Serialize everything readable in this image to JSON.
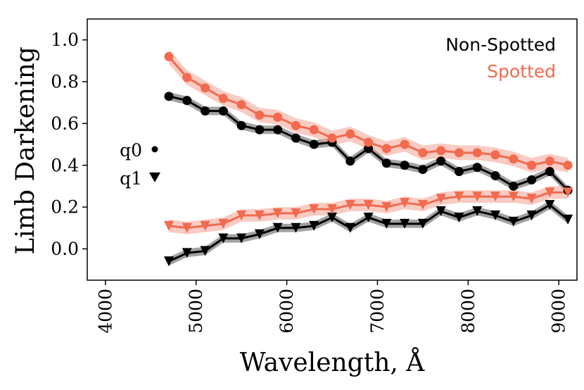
{
  "chart_data": {
    "type": "line",
    "xlabel": "Wavelength, Å",
    "ylabel": "Limb Darkening",
    "xlim": [
      3800,
      9200
    ],
    "ylim": [
      -0.15,
      1.1
    ],
    "x_ticks": [
      4000,
      5000,
      6000,
      7000,
      8000,
      9000
    ],
    "y_ticks": [
      0.0,
      0.2,
      0.4,
      0.6,
      0.8,
      1.0
    ],
    "x_tick_labels": [
      "4000",
      "5000",
      "6000",
      "7000",
      "8000",
      "9000"
    ],
    "y_tick_labels": [
      "0.0",
      "0.2",
      "0.4",
      "0.6",
      "0.8",
      "1.0"
    ],
    "legend": {
      "placement": "top-right",
      "entries": [
        {
          "label": "Non-Spotted",
          "color": "#000000"
        },
        {
          "label": "Spotted",
          "color": "#f26a4f"
        }
      ]
    },
    "marker_key": [
      {
        "label": "q0",
        "marker": "•"
      },
      {
        "label": "q1",
        "marker": "▼"
      }
    ],
    "x": [
      4700,
      4900,
      5100,
      5300,
      5500,
      5700,
      5900,
      6100,
      6300,
      6500,
      6700,
      6900,
      7100,
      7300,
      7500,
      7700,
      7900,
      8100,
      8300,
      8500,
      8700,
      8900,
      9100
    ],
    "series": [
      {
        "name": "Non-Spotted q0",
        "group": "Non-Spotted",
        "param": "q0",
        "marker": "circle",
        "color": "#000000",
        "band_color": "#555555",
        "error": 0.02,
        "values": [
          0.73,
          0.71,
          0.66,
          0.66,
          0.59,
          0.57,
          0.57,
          0.53,
          0.5,
          0.51,
          0.42,
          0.48,
          0.41,
          0.4,
          0.38,
          0.42,
          0.37,
          0.39,
          0.35,
          0.3,
          0.33,
          0.37,
          0.28
        ]
      },
      {
        "name": "Spotted q0",
        "group": "Spotted",
        "param": "q0",
        "marker": "circle",
        "color": "#f26a4f",
        "band_color": "#f4a090",
        "error": 0.035,
        "values": [
          0.92,
          0.82,
          0.77,
          0.72,
          0.69,
          0.64,
          0.63,
          0.59,
          0.57,
          0.53,
          0.55,
          0.51,
          0.48,
          0.5,
          0.46,
          0.47,
          0.46,
          0.46,
          0.45,
          0.43,
          0.4,
          0.42,
          0.4
        ]
      },
      {
        "name": "Non-Spotted q1",
        "group": "Non-Spotted",
        "param": "q1",
        "marker": "triangle",
        "color": "#000000",
        "band_color": "#555555",
        "error": 0.02,
        "values": [
          -0.06,
          -0.02,
          -0.01,
          0.05,
          0.05,
          0.07,
          0.1,
          0.1,
          0.11,
          0.15,
          0.1,
          0.15,
          0.12,
          0.12,
          0.12,
          0.18,
          0.15,
          0.18,
          0.16,
          0.13,
          0.16,
          0.21,
          0.14
        ]
      },
      {
        "name": "Spotted q1",
        "group": "Spotted",
        "param": "q1",
        "marker": "triangle",
        "color": "#f26a4f",
        "band_color": "#f4a090",
        "error": 0.03,
        "values": [
          0.11,
          0.1,
          0.11,
          0.12,
          0.16,
          0.16,
          0.17,
          0.17,
          0.19,
          0.19,
          0.21,
          0.21,
          0.2,
          0.22,
          0.21,
          0.24,
          0.25,
          0.25,
          0.25,
          0.25,
          0.24,
          0.27,
          0.27
        ]
      }
    ]
  }
}
